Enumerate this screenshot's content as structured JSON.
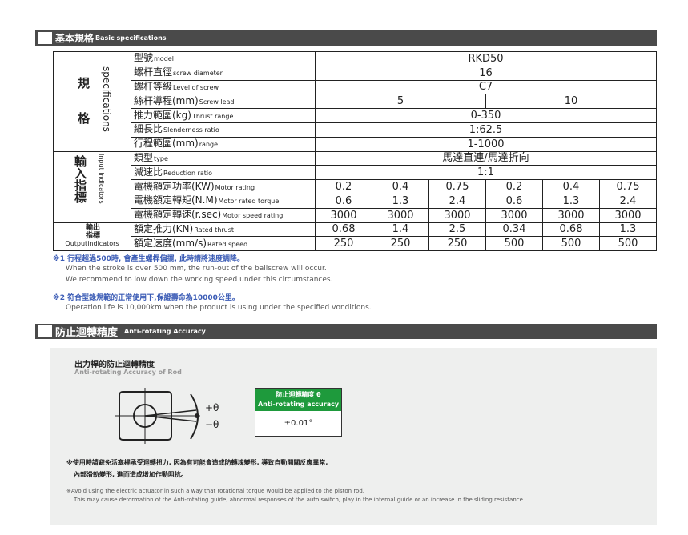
{
  "section1": {
    "title_zh": "基本規格",
    "title_en": "Basic specifications"
  },
  "groups": {
    "spec": {
      "zh1": "規",
      "zh2": "格",
      "en": "specifications"
    },
    "input": {
      "zh": "輸入指標",
      "en": "Input indicators"
    },
    "output": {
      "zh": "輸出指標",
      "en": "Outputindicators"
    }
  },
  "rows": [
    {
      "zh": "型號",
      "en": "model",
      "values": [
        "RKD50"
      ]
    },
    {
      "zh": "螺杆直徑",
      "en": "screw diameter",
      "values": [
        "16"
      ]
    },
    {
      "zh": "螺杆等級",
      "en": "Level of screw",
      "values": [
        "C7"
      ]
    },
    {
      "zh": "絲杆導程(mm)",
      "en": "Screw lead",
      "values": [
        "5",
        "10"
      ]
    },
    {
      "zh": "推力範圍(kg)",
      "en": "Thrust range",
      "values": [
        "0-350"
      ]
    },
    {
      "zh": "細長比",
      "en": "Slenderness ratio",
      "values": [
        "1:62.5"
      ]
    },
    {
      "zh": "行程範圍(mm)",
      "en": "range",
      "values": [
        "1-1000"
      ]
    },
    {
      "zh": "類型",
      "en": "type",
      "values": [
        "馬達直連/馬達折向"
      ]
    },
    {
      "zh": "減速比",
      "en": "Reduction ratio",
      "values": [
        "1:1"
      ]
    },
    {
      "zh": "電機額定功率(KW)",
      "en": "Motor rating",
      "values": [
        "0.2",
        "0.4",
        "0.75",
        "0.2",
        "0.4",
        "0.75"
      ]
    },
    {
      "zh": "電機額定轉矩(N.M)",
      "en": "Motor rated torque",
      "values": [
        "0.6",
        "1.3",
        "2.4",
        "0.6",
        "1.3",
        "2.4"
      ]
    },
    {
      "zh": "電機額定轉速(r.sec)",
      "en": "Motor speed rating",
      "values": [
        "3000",
        "3000",
        "3000",
        "3000",
        "3000",
        "3000"
      ]
    },
    {
      "zh": "額定推力(KN)",
      "en": "Rated thrust",
      "values": [
        "0.68",
        "1.4",
        "2.5",
        "0.34",
        "0.68",
        "1.3"
      ]
    },
    {
      "zh": "額定速度(mm/s)",
      "en": "Rated speed",
      "values": [
        "250",
        "250",
        "250",
        "500",
        "500",
        "500"
      ]
    }
  ],
  "notes": {
    "n1_zh": "※1 行程超過500時, 會產生螺桿偏擺, 此時請將速度調降。",
    "n1_en1": "When the stroke is over 500 mm, the run-out of the ballscrew will occur.",
    "n1_en2": "We recommend to low down the working speed under this circumstances.",
    "n2_zh": "※2 符合型錄規範的正常使用下,保證壽命為10000公里。",
    "n2_en": "Operation life is 10,000km when the product is using under the specified vonditions."
  },
  "section2": {
    "title_zh": "防止迴轉精度",
    "title_en": "Anti-rotating Accuracy"
  },
  "panel": {
    "title_zh": "出力桿的防止迴轉精度",
    "title_en": "Anti-rotating Accuracy of Rod",
    "plus_theta": "+θ",
    "minus_theta": "−θ",
    "box_zh": "防止迴轉精度 θ",
    "box_en": "Anti-rotating accuracy",
    "box_value": "±0.01°",
    "warn_zh1": "※使用時請避免活塞桿承受迴轉扭力, 因為有可能會造成防轉塊變形, 導致自動開關反應異常,",
    "warn_zh2": "內部滑軌變形, 進而造成增加作動阻抗。",
    "warn_en1": "※Avoid using the electric actuator in such a way that rotational torque would be applied to the piston rod.",
    "warn_en2": "This may cause deformation of the Anti-rotating guide, abnormal responses of the auto switch, play in the internal guide or an increase in the sliding resistance."
  },
  "colors": {
    "header_bar": "#4a4a4a",
    "note_blue": "#3a5bb5",
    "green": "#1e9a3c",
    "panel": "#eeefee"
  }
}
